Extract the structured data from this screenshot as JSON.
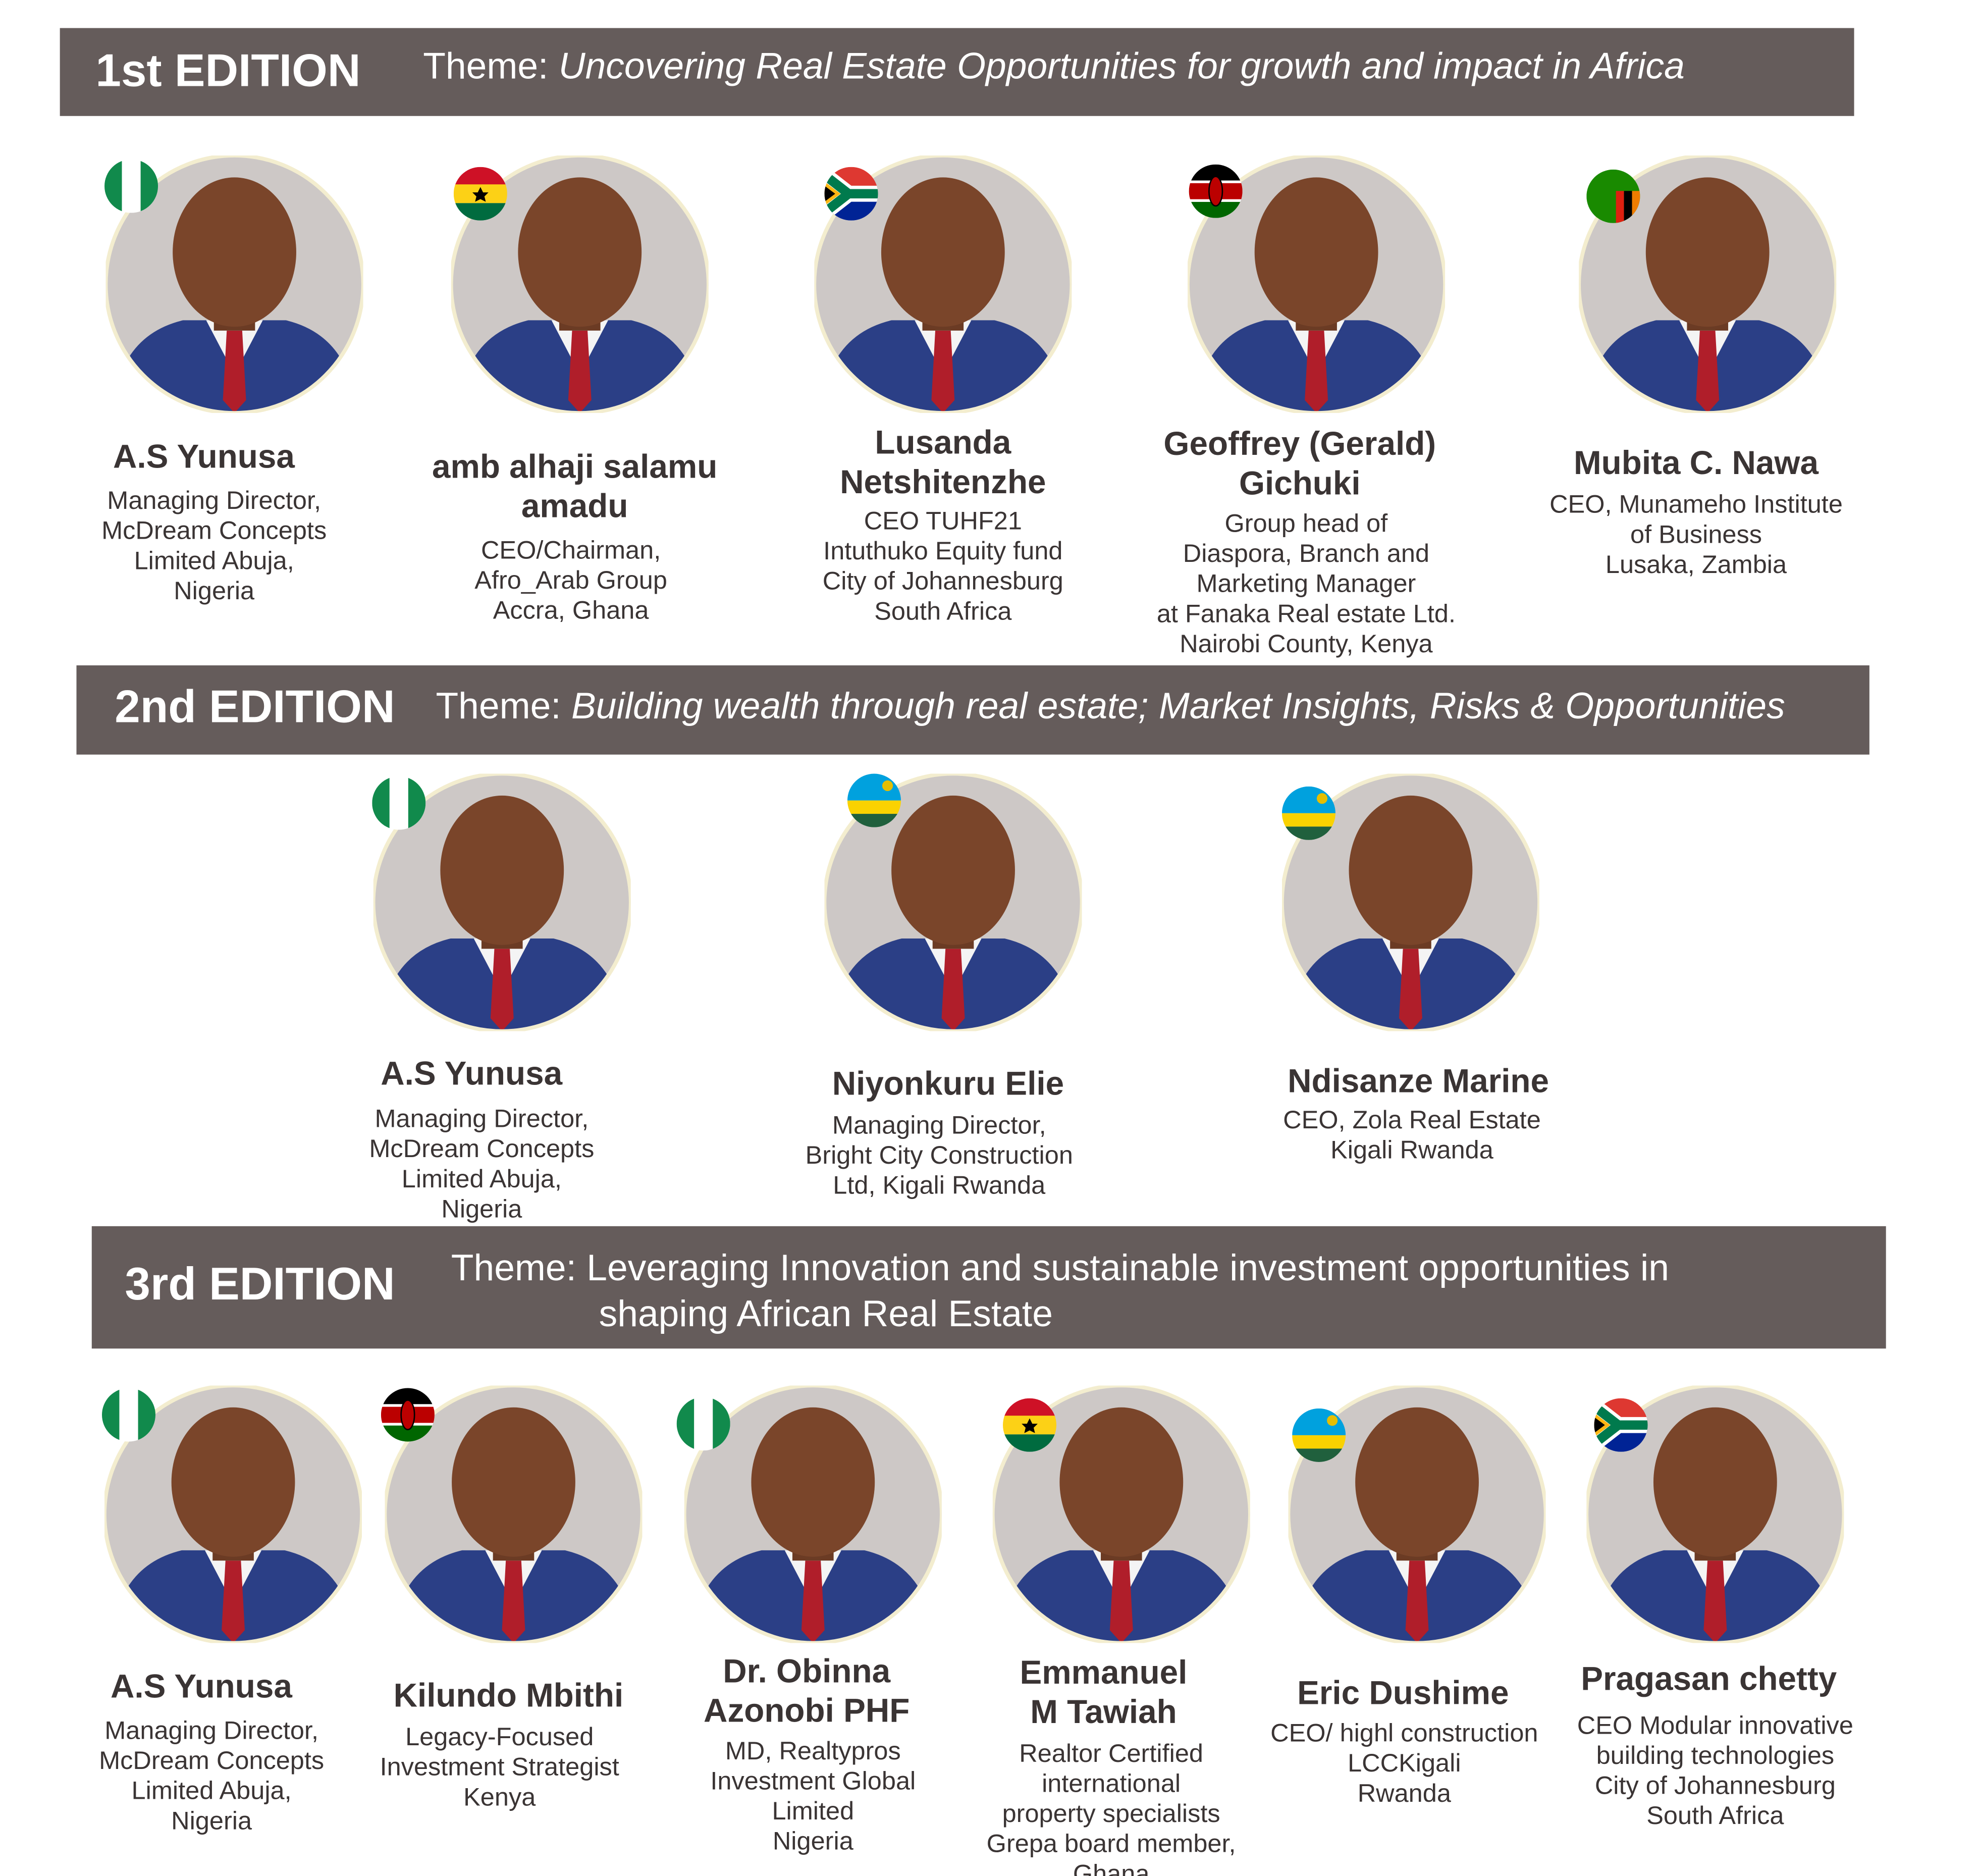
{
  "editions": [
    {
      "label": "1st EDITION",
      "theme_prefix": "Theme:",
      "theme": [
        "Uncovering Real Estate Opportunities for growth and impact in Africa"
      ],
      "speakers": [
        {
          "name": [
            "A.S Yunusa"
          ],
          "roles": [
            "Managing Director,",
            "McDream Concepts",
            "Limited Abuja,",
            "Nigeria"
          ]
        },
        {
          "name": [
            "amb alhaji salamu",
            "amadu"
          ],
          "roles": [
            "CEO/Chairman,",
            "Afro_Arab Group",
            "Accra, Ghana"
          ]
        },
        {
          "name": [
            "Lusanda",
            "Netshitenzhe"
          ],
          "roles": [
            "CEO TUHF21",
            "Intuthuko Equity fund",
            "City of Johannesburg",
            "South Africa"
          ]
        },
        {
          "name": [
            "Geoffrey (Gerald)",
            "Gichuki"
          ],
          "roles": [
            "Group head of",
            "Diaspora, Branch and",
            "Marketing Manager",
            "at Fanaka Real estate Ltd.",
            "Nairobi County, Kenya"
          ]
        },
        {
          "name": [
            "Mubita C. Nawa"
          ],
          "roles": [
            "CEO, Munameho Institute",
            "of Business",
            "Lusaka, Zambia"
          ]
        }
      ]
    },
    {
      "label": "2nd EDITION",
      "theme_prefix": "Theme:",
      "theme": [
        "Building wealth through real estate; Market Insights, Risks & Opportunities"
      ],
      "speakers": [
        {
          "name": [
            "A.S Yunusa"
          ],
          "roles": [
            "Managing Director,",
            "McDream Concepts",
            "Limited Abuja,",
            "Nigeria"
          ]
        },
        {
          "name": [
            "Niyonkuru Elie"
          ],
          "roles": [
            "Managing Director,",
            "Bright City Construction",
            "Ltd, Kigali Rwanda"
          ]
        },
        {
          "name": [
            "Ndisanze Marine"
          ],
          "roles": [
            "CEO, Zola Real Estate",
            "Kigali Rwanda"
          ]
        }
      ]
    },
    {
      "label": "3rd EDITION",
      "theme_prefix": "Theme:",
      "theme": [
        "Leveraging Innovation and sustainable investment opportunities in",
        "shaping African Real Estate"
      ],
      "speakers": [
        {
          "name": [
            "A.S Yunusa"
          ],
          "roles": [
            "Managing Director,",
            "McDream Concepts",
            "Limited Abuja,",
            "Nigeria"
          ]
        },
        {
          "name": [
            "Kilundo Mbithi"
          ],
          "roles": [
            "Legacy-Focused",
            "Investment Strategist",
            "Kenya"
          ]
        },
        {
          "name": [
            "Dr. Obinna",
            "Azonobi PHF"
          ],
          "roles": [
            "MD, Realtypros",
            "Investment Global",
            "Limited",
            "Nigeria"
          ]
        },
        {
          "name": [
            "Emmanuel",
            "M Tawiah"
          ],
          "roles": [
            "Realtor Certified",
            "international",
            "property specialists",
            "Grepa board member,",
            "Ghana"
          ]
        },
        {
          "name": [
            "Eric Dushime"
          ],
          "roles": [
            "CEO/ highl construction",
            "LCCKigali",
            "Rwanda"
          ]
        },
        {
          "name": [
            "Pragasan chetty"
          ],
          "roles": [
            "CEO Modular innovative",
            "building technologies",
            "City of Johannesburg",
            "South Africa"
          ]
        }
      ]
    }
  ]
}
